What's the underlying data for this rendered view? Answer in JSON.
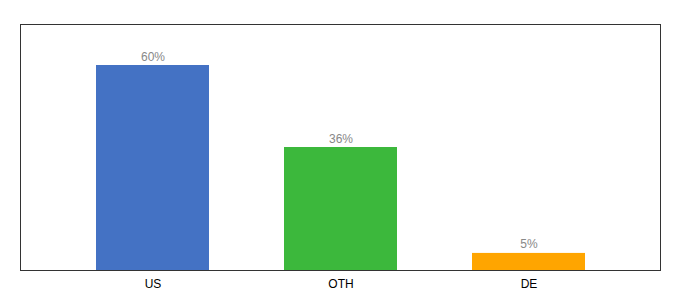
{
  "chart_data": {
    "type": "bar",
    "categories": [
      "US",
      "OTH",
      "DE"
    ],
    "values": [
      60,
      36,
      5
    ],
    "value_labels": [
      "60%",
      "36%",
      "5%"
    ],
    "colors": [
      "#4472C4",
      "#3CB83C",
      "#FFA500"
    ],
    "ylim": [
      0,
      72
    ],
    "data_labels": true,
    "tick_labels": "x",
    "grid": false
  }
}
